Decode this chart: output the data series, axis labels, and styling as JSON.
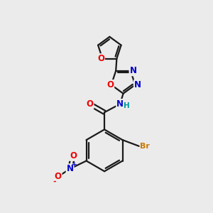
{
  "bg_color": "#ebebeb",
  "bond_color": "#1a1a1a",
  "bond_width": 1.6,
  "atom_colors": {
    "O": "#ee0000",
    "N": "#0000cc",
    "Br": "#cc7700",
    "H": "#009999",
    "C": "#1a1a1a"
  },
  "font_size_atom": 8.5,
  "font_size_br": 8.0,
  "font_size_h": 7.5
}
